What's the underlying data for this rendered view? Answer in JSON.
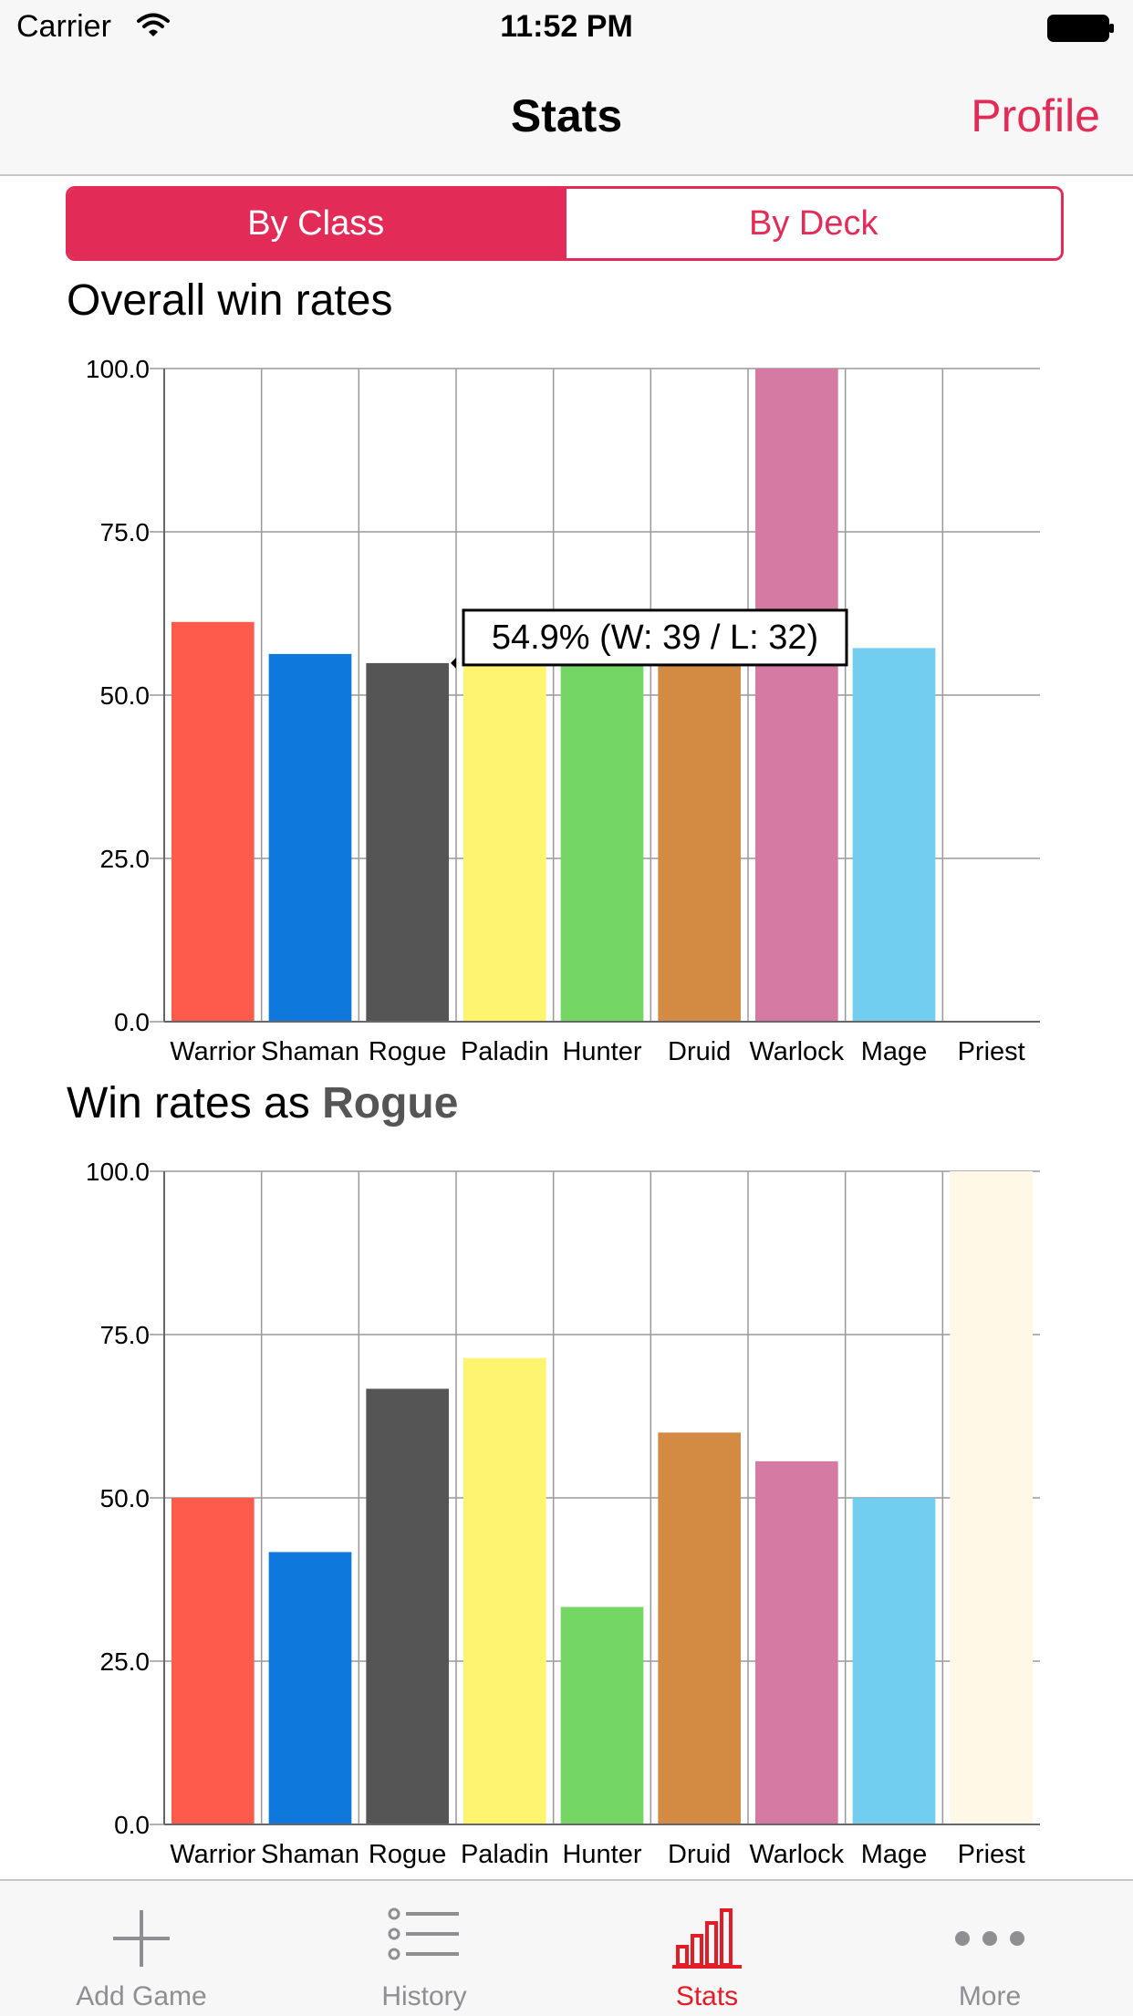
{
  "status_bar": {
    "carrier": "Carrier",
    "time": "11:52 PM"
  },
  "nav": {
    "title": "Stats",
    "right_button": "Profile"
  },
  "segmented": {
    "options": [
      "By Class",
      "By Deck"
    ],
    "selected": 0
  },
  "section1": {
    "title": "Overall win rates"
  },
  "section2": {
    "title_prefix": "Win rates as ",
    "title_class": "Rogue"
  },
  "tooltip": {
    "text": "54.9% (W: 39 / L: 32)"
  },
  "tabs": [
    {
      "label": "Add Game",
      "icon": "plus-icon"
    },
    {
      "label": "History",
      "icon": "list-icon"
    },
    {
      "label": "Stats",
      "icon": "bar-chart-icon",
      "active": true
    },
    {
      "label": "More",
      "icon": "more-icon"
    }
  ],
  "colors": {
    "accent": "#e22c57",
    "active_tab": "#e41c26"
  },
  "chart_data": [
    {
      "type": "bar",
      "categories": [
        "Warrior",
        "Shaman",
        "Rogue",
        "Paladin",
        "Hunter",
        "Druid",
        "Warlock",
        "Mage",
        "Priest"
      ],
      "values": [
        61.2,
        56.3,
        54.9,
        54.9,
        54.9,
        54.9,
        100.0,
        57.2,
        0
      ],
      "colors": [
        "#fe5b4d",
        "#0f78dc",
        "#555555",
        "#fef46f",
        "#74d663",
        "#d38a43",
        "#d57ba3",
        "#72cef1",
        "#fff8e6"
      ],
      "yticks": [
        "0.0",
        "25.0",
        "50.0",
        "75.0",
        "100.0"
      ],
      "ylim": [
        0,
        100
      ],
      "grid": true
    },
    {
      "type": "bar",
      "categories": [
        "Warrior",
        "Shaman",
        "Rogue",
        "Paladin",
        "Hunter",
        "Druid",
        "Warlock",
        "Mage",
        "Priest"
      ],
      "values": [
        50.0,
        41.7,
        66.7,
        71.4,
        33.3,
        60.0,
        55.6,
        50.0,
        100.0
      ],
      "colors": [
        "#fe5b4d",
        "#0f78dc",
        "#555555",
        "#fef46f",
        "#74d663",
        "#d38a43",
        "#d57ba3",
        "#72cef1",
        "#fff8e6"
      ],
      "yticks": [
        "0.0",
        "25.0",
        "50.0",
        "75.0",
        "100.0"
      ],
      "ylim": [
        0,
        100
      ],
      "grid": true
    }
  ]
}
